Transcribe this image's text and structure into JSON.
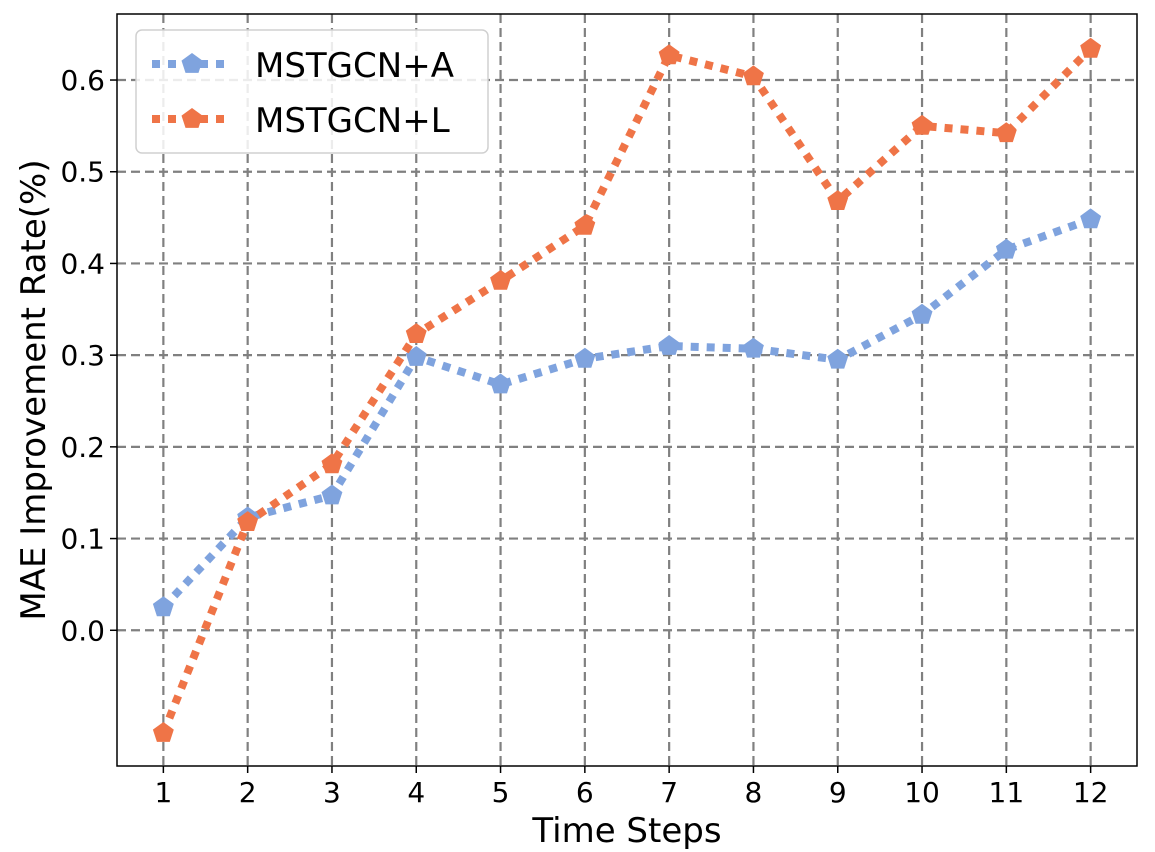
{
  "chart_data": {
    "type": "line",
    "xlabel": "Time Steps",
    "ylabel": "MAE Improvement Rate(%)",
    "x": [
      1,
      2,
      3,
      4,
      5,
      6,
      7,
      8,
      9,
      10,
      11,
      12
    ],
    "x_tick_labels": [
      "1",
      "2",
      "3",
      "4",
      "5",
      "6",
      "7",
      "8",
      "9",
      "10",
      "11",
      "12"
    ],
    "y_ticks": [
      0.0,
      0.1,
      0.2,
      0.3,
      0.4,
      0.5,
      0.6
    ],
    "y_tick_labels": [
      "0.0",
      "0.1",
      "0.2",
      "0.3",
      "0.4",
      "0.5",
      "0.6"
    ],
    "xlim": [
      0.45,
      12.55
    ],
    "ylim": [
      -0.148,
      0.672
    ],
    "grid": true,
    "legend_position": "top-left",
    "series": [
      {
        "name": "MSTGCN+A",
        "color": "#7fa3de",
        "marker": "pentagon",
        "line_style": "dotted",
        "values": [
          0.025,
          0.123,
          0.147,
          0.298,
          0.268,
          0.296,
          0.31,
          0.307,
          0.295,
          0.344,
          0.415,
          0.448
        ]
      },
      {
        "name": "MSTGCN+L",
        "color": "#ef7447",
        "marker": "pentagon",
        "line_style": "dotted",
        "values": [
          -0.112,
          0.118,
          0.181,
          0.323,
          0.381,
          0.441,
          0.627,
          0.604,
          0.468,
          0.55,
          0.542,
          0.634
        ]
      }
    ]
  }
}
